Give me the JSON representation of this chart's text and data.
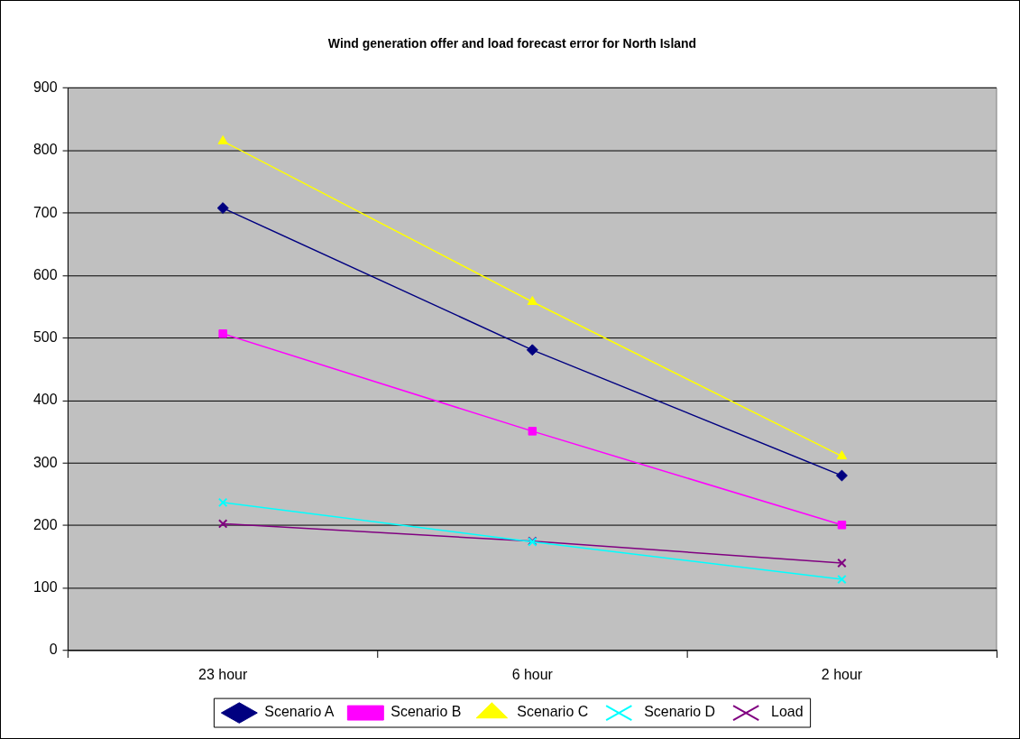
{
  "chart_data": {
    "type": "line",
    "title": "Wind generation offer and load forecast error for North Island",
    "categories": [
      "23 hour",
      "6 hour",
      "2 hour"
    ],
    "series": [
      {
        "name": "Scenario A",
        "color": "#000080",
        "marker": "diamond",
        "values": [
          708,
          481,
          280
        ]
      },
      {
        "name": "Scenario B",
        "color": "#ff00ff",
        "marker": "square",
        "values": [
          507,
          351,
          201
        ]
      },
      {
        "name": "Scenario C",
        "color": "#ffff00",
        "marker": "triangle",
        "values": [
          815,
          558,
          311
        ]
      },
      {
        "name": "Scenario D",
        "color": "#00ffff",
        "marker": "cross",
        "values": [
          237,
          174,
          114
        ]
      },
      {
        "name": "Load",
        "color": "#800080",
        "marker": "cross",
        "values": [
          203,
          175,
          140
        ]
      }
    ],
    "ylim": [
      0,
      900
    ],
    "yticks": [
      0,
      100,
      200,
      300,
      400,
      500,
      600,
      700,
      800,
      900
    ],
    "grid": "y",
    "legend": "bottom",
    "line_style": "solid"
  }
}
